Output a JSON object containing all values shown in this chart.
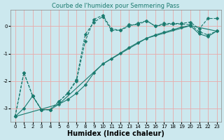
{
  "title": "Courbe de l'humidex pour Semmering Pass",
  "xlabel": "Humidex (Indice chaleur)",
  "bg_color": "#cce8ee",
  "grid_color": "#e8aaaa",
  "line_color": "#1a7a6e",
  "xlim": [
    -0.5,
    23.5
  ],
  "ylim": [
    -3.5,
    0.6
  ],
  "yticks": [
    0,
    -1,
    -2,
    -3
  ],
  "xticks": [
    0,
    1,
    2,
    3,
    4,
    5,
    6,
    7,
    8,
    9,
    10,
    11,
    12,
    13,
    14,
    15,
    16,
    17,
    18,
    19,
    20,
    21,
    22,
    23
  ],
  "line1_x": [
    0,
    1,
    2,
    3,
    4,
    5,
    6,
    7,
    8,
    9,
    10,
    11,
    12,
    13,
    14,
    15,
    16,
    17,
    18,
    19,
    20,
    21,
    22,
    23
  ],
  "line1_y": [
    -3.3,
    -1.7,
    -2.55,
    -3.05,
    -3.05,
    -2.75,
    -2.45,
    -2.0,
    -0.55,
    0.25,
    0.4,
    -0.1,
    -0.15,
    0.05,
    0.05,
    0.2,
    0.0,
    0.1,
    0.1,
    0.1,
    0.15,
    -0.1,
    0.28,
    0.28
  ],
  "line2_x": [
    0,
    1,
    2,
    3,
    4,
    5,
    6,
    7,
    8,
    9,
    10,
    11,
    12,
    13,
    14,
    15,
    16,
    17,
    18,
    19,
    20,
    21,
    22,
    23
  ],
  "line2_y": [
    -3.3,
    -1.7,
    -2.55,
    -3.05,
    -3.05,
    -2.75,
    -2.45,
    -1.95,
    -0.3,
    0.15,
    0.35,
    -0.15,
    -0.15,
    0.0,
    0.1,
    0.2,
    0.0,
    0.05,
    0.08,
    0.08,
    0.05,
    -0.2,
    -0.32,
    -0.18
  ],
  "line3_x": [
    0,
    1,
    2,
    3,
    4,
    5,
    6,
    7,
    8,
    9,
    10,
    11,
    12,
    13,
    14,
    15,
    16,
    17,
    18,
    19,
    20,
    21,
    22,
    23
  ],
  "line3_y": [
    -3.3,
    -3.0,
    -2.55,
    -3.05,
    -3.05,
    -2.85,
    -2.68,
    -2.45,
    -2.15,
    -1.7,
    -1.38,
    -1.18,
    -0.98,
    -0.78,
    -0.6,
    -0.44,
    -0.32,
    -0.22,
    -0.13,
    -0.03,
    0.02,
    -0.28,
    -0.38,
    -0.18
  ],
  "line4_x": [
    0,
    5,
    10,
    15,
    20,
    23
  ],
  "line4_y": [
    -3.3,
    -2.85,
    -1.38,
    -0.44,
    0.02,
    -0.18
  ],
  "marker_size": 2.5,
  "title_fontsize": 6,
  "xlabel_fontsize": 7,
  "tick_fontsize": 5
}
